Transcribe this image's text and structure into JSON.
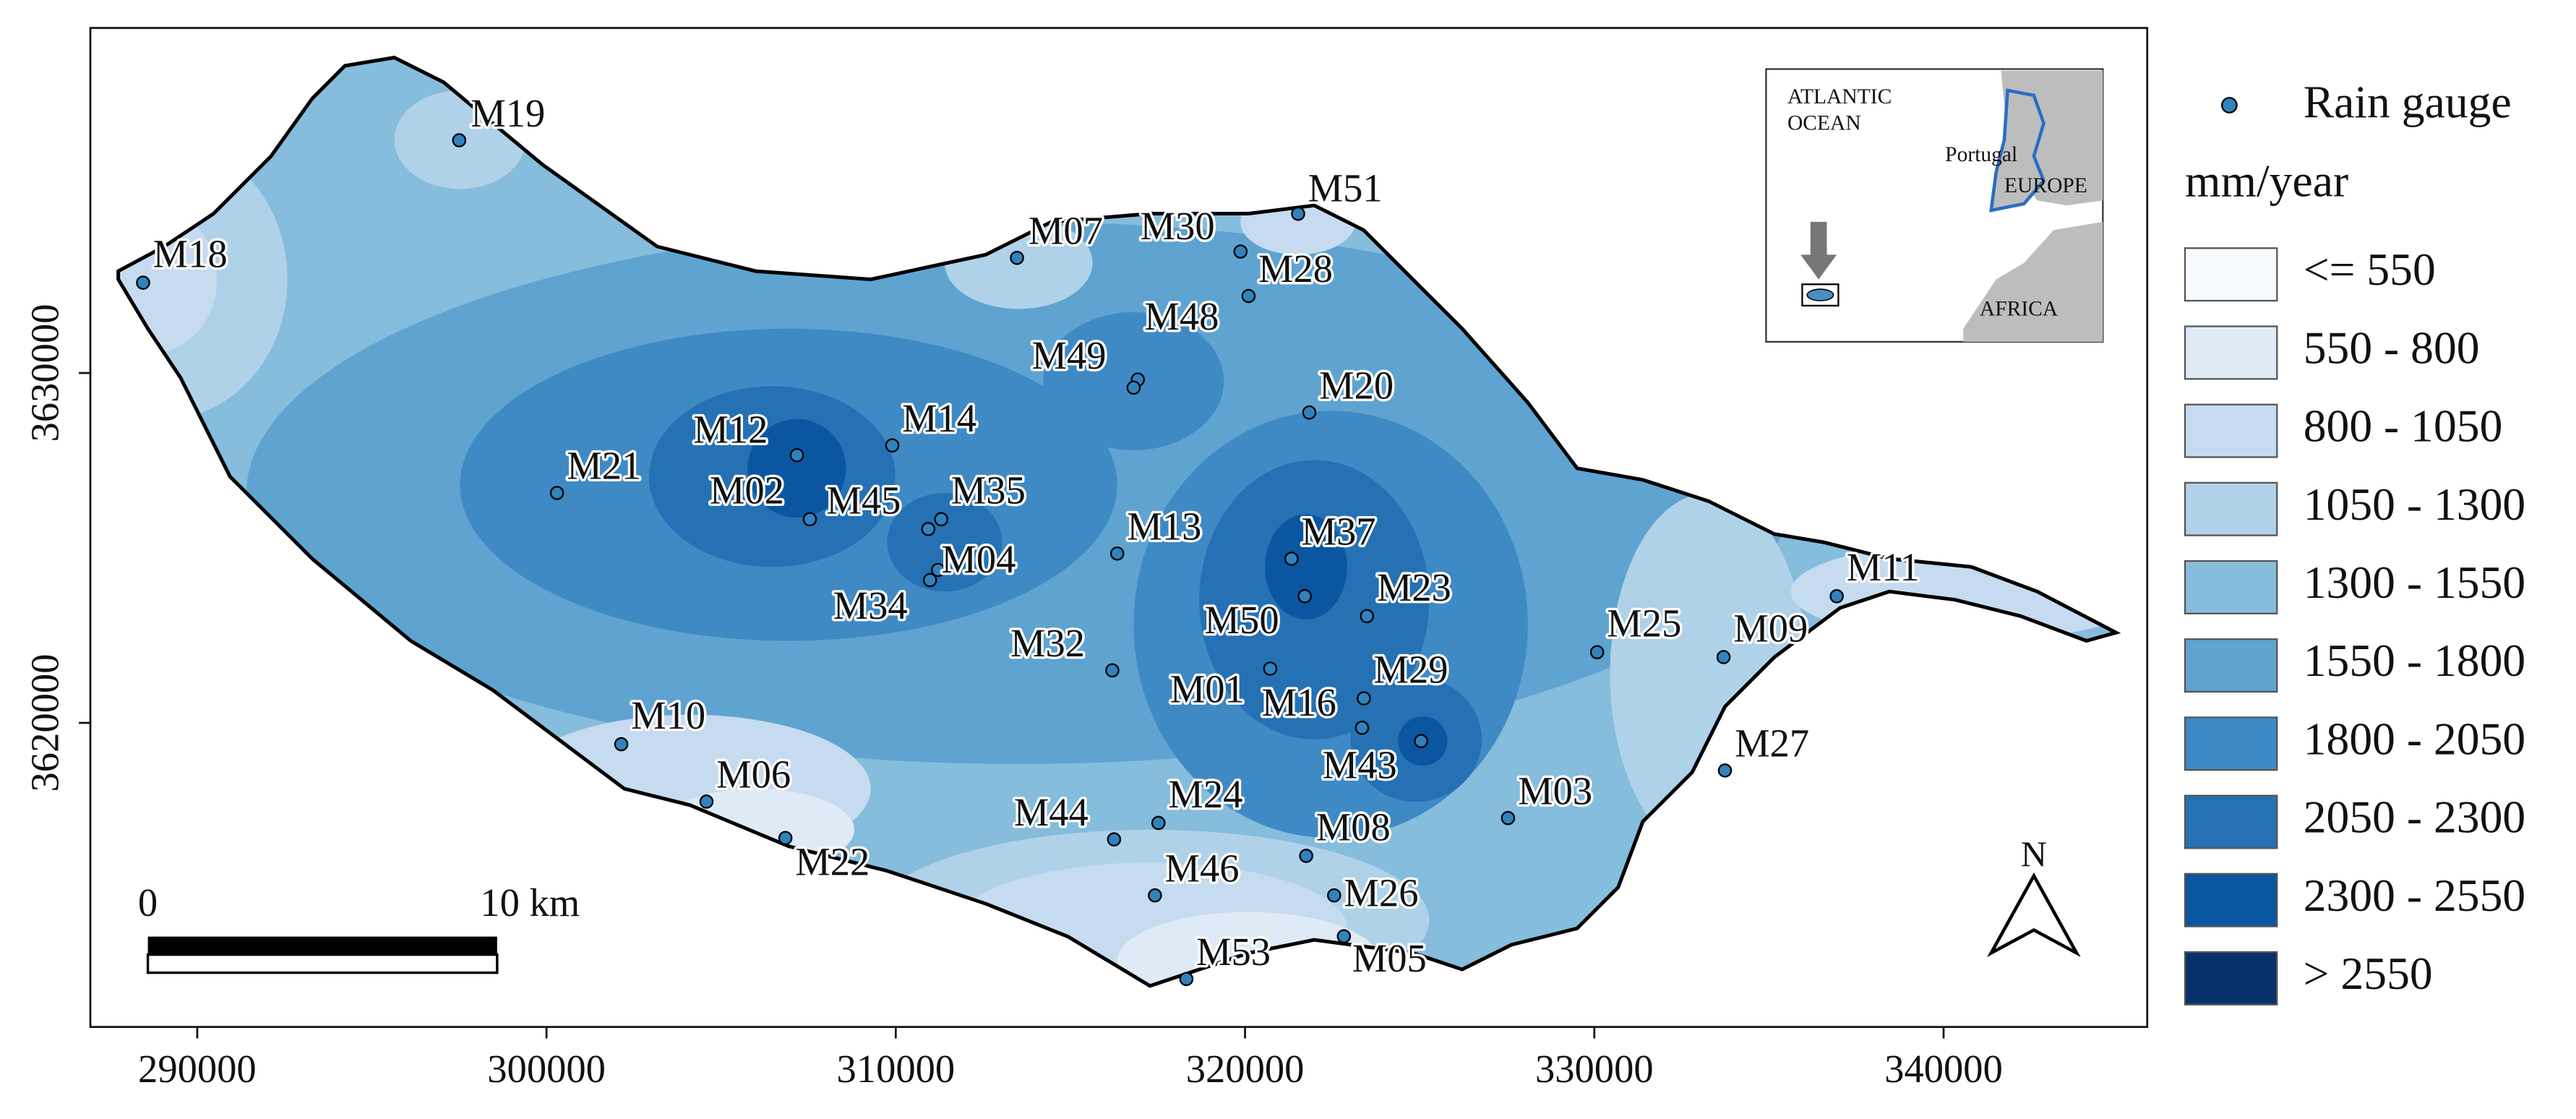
{
  "map": {
    "xlim": [
      286940,
      345830
    ],
    "ylim": [
      3611310,
      3639860
    ],
    "xticks": [
      290000,
      300000,
      310000,
      320000,
      330000,
      340000
    ],
    "yticks": [
      3620000,
      3630000
    ],
    "gauges": [
      {
        "name": "M19",
        "x": 297500,
        "y": 3636650
      },
      {
        "name": "M18",
        "x": 288450,
        "y": 3632580
      },
      {
        "name": "M07",
        "x": 313470,
        "y": 3633290
      },
      {
        "name": "M30",
        "x": 319870,
        "y": 3633470
      },
      {
        "name": "M51",
        "x": 321520,
        "y": 3634550
      },
      {
        "name": "M28",
        "x": 320100,
        "y": 3632200
      },
      {
        "name": "M48",
        "x": 316930,
        "y": 3629810
      },
      {
        "name": "M49",
        "x": 316810,
        "y": 3629580
      },
      {
        "name": "M20",
        "x": 321840,
        "y": 3628870
      },
      {
        "name": "M12",
        "x": 307170,
        "y": 3627650
      },
      {
        "name": "M14",
        "x": 309900,
        "y": 3627930
      },
      {
        "name": "M21",
        "x": 300300,
        "y": 3626570
      },
      {
        "name": "M02",
        "x": 307540,
        "y": 3625820
      },
      {
        "name": "M45",
        "x": 310930,
        "y": 3625540
      },
      {
        "name": "M35",
        "x": 311300,
        "y": 3625820
      },
      {
        "name": "M04",
        "x": 311210,
        "y": 3624370
      },
      {
        "name": "M34",
        "x": 310980,
        "y": 3624080
      },
      {
        "name": "M13",
        "x": 316340,
        "y": 3624840
      },
      {
        "name": "M37",
        "x": 321330,
        "y": 3624690
      },
      {
        "name": "M23",
        "x": 323490,
        "y": 3623050
      },
      {
        "name": "M50",
        "x": 321710,
        "y": 3623620
      },
      {
        "name": "M01",
        "x": 320720,
        "y": 3621550
      },
      {
        "name": "M16",
        "x": 323350,
        "y": 3619860
      },
      {
        "name": "M29",
        "x": 323400,
        "y": 3620700
      },
      {
        "name": "M43",
        "x": 325040,
        "y": 3619480
      },
      {
        "name": "M32",
        "x": 316200,
        "y": 3621500
      },
      {
        "name": "M25",
        "x": 330080,
        "y": 3622020
      },
      {
        "name": "M09",
        "x": 333700,
        "y": 3621880
      },
      {
        "name": "M11",
        "x": 336940,
        "y": 3623620
      },
      {
        "name": "M27",
        "x": 333740,
        "y": 3618640
      },
      {
        "name": "M03",
        "x": 327530,
        "y": 3617280
      },
      {
        "name": "M10",
        "x": 302140,
        "y": 3619390
      },
      {
        "name": "M06",
        "x": 304580,
        "y": 3617750
      },
      {
        "name": "M22",
        "x": 306840,
        "y": 3616710
      },
      {
        "name": "M44",
        "x": 316250,
        "y": 3616670
      },
      {
        "name": "M24",
        "x": 317520,
        "y": 3617140
      },
      {
        "name": "M08",
        "x": 321750,
        "y": 3616200
      },
      {
        "name": "M46",
        "x": 317420,
        "y": 3615070
      },
      {
        "name": "M26",
        "x": 322550,
        "y": 3615070
      },
      {
        "name": "M05",
        "x": 322830,
        "y": 3613900
      },
      {
        "name": "M53",
        "x": 318320,
        "y": 3612680
      }
    ],
    "gauge_color": "#3182bd",
    "legend": {
      "point_label": "Rain gauge",
      "title": "mm/year",
      "classes": [
        {
          "label": "<= 550",
          "color": "#f7fbff"
        },
        {
          "label": "550 - 800",
          "color": "#deebf7"
        },
        {
          "label": "800 - 1050",
          "color": "#c6dbef"
        },
        {
          "label": "1050 - 1300",
          "color": "#b0d2e8"
        },
        {
          "label": "1300 - 1550",
          "color": "#86bcdc"
        },
        {
          "label": "1550 - 1800",
          "color": "#5fa3d1"
        },
        {
          "label": "1800 - 2050",
          "color": "#3f8ac4"
        },
        {
          "label": "2050 - 2300",
          "color": "#2571b4"
        },
        {
          "label": "2300 - 2550",
          "color": "#0b56a0"
        },
        {
          "label": "> 2550",
          "color": "#08306b"
        }
      ]
    },
    "scale_bar": {
      "start": "0",
      "end": "10 km"
    },
    "inset": {
      "ocean": "ATLANTIC",
      "ocean2": "OCEAN",
      "country": "Portugal",
      "europe": "EUROPE",
      "africa": "AFRICA"
    },
    "north": "N"
  }
}
